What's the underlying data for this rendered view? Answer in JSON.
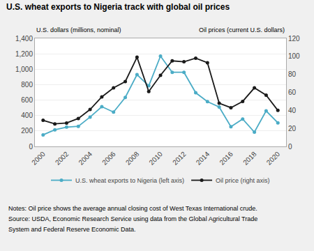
{
  "chart_data": {
    "type": "line",
    "title": "U.S. wheat exports to Nigeria track with global oil prices",
    "ylabel": "U.S. dollars (millions, nominal)",
    "y2label": "Oil prices (current U.S. dollars)",
    "x": [
      2000,
      2001,
      2002,
      2003,
      2004,
      2005,
      2006,
      2007,
      2008,
      2009,
      2010,
      2011,
      2012,
      2013,
      2014,
      2015,
      2016,
      2017,
      2018,
      2019,
      2020
    ],
    "xlim": [
      1999.3,
      2020.7
    ],
    "xticks": [
      2000,
      2002,
      2004,
      2006,
      2008,
      2010,
      2012,
      2014,
      2016,
      2018,
      2020
    ],
    "ylim": [
      0,
      1400
    ],
    "yticks": [
      0,
      200,
      400,
      600,
      800,
      {
        "value": 1000,
        "label": "1,000"
      },
      {
        "value": 1200,
        "label": "1,200"
      },
      {
        "value": 1400,
        "label": "1,400"
      }
    ],
    "y2lim": [
      0,
      120
    ],
    "y2ticks": [
      0,
      20,
      40,
      60,
      80,
      100,
      120
    ],
    "grid": true,
    "legend": "bottom",
    "series": [
      {
        "name": "U.S. wheat exports to Nigeria (left axis)",
        "color": "#4BACC6",
        "marker": "circle",
        "values": [
          150,
          215,
          250,
          260,
          380,
          515,
          445,
          635,
          930,
          785,
          1170,
          960,
          960,
          695,
          580,
          510,
          255,
          355,
          185,
          460,
          305
        ]
      },
      {
        "name": "Oil price (right axis)",
        "color": "#1A1A1A",
        "marker": "circle",
        "axis": "y2",
        "values": [
          29,
          25,
          26,
          31,
          41,
          55,
          65,
          72,
          99,
          61,
          79,
          95,
          94,
          98,
          93,
          48,
          43,
          50,
          65,
          57,
          40
        ]
      }
    ],
    "annotations": [
      "Notes: Oil price shows the average annual closing cost of West Texas International crude.",
      "Source: USDA, Economic Research Service using data from the Global Agricultural Trade",
      "System and Federal Reserve Economic Data."
    ]
  }
}
